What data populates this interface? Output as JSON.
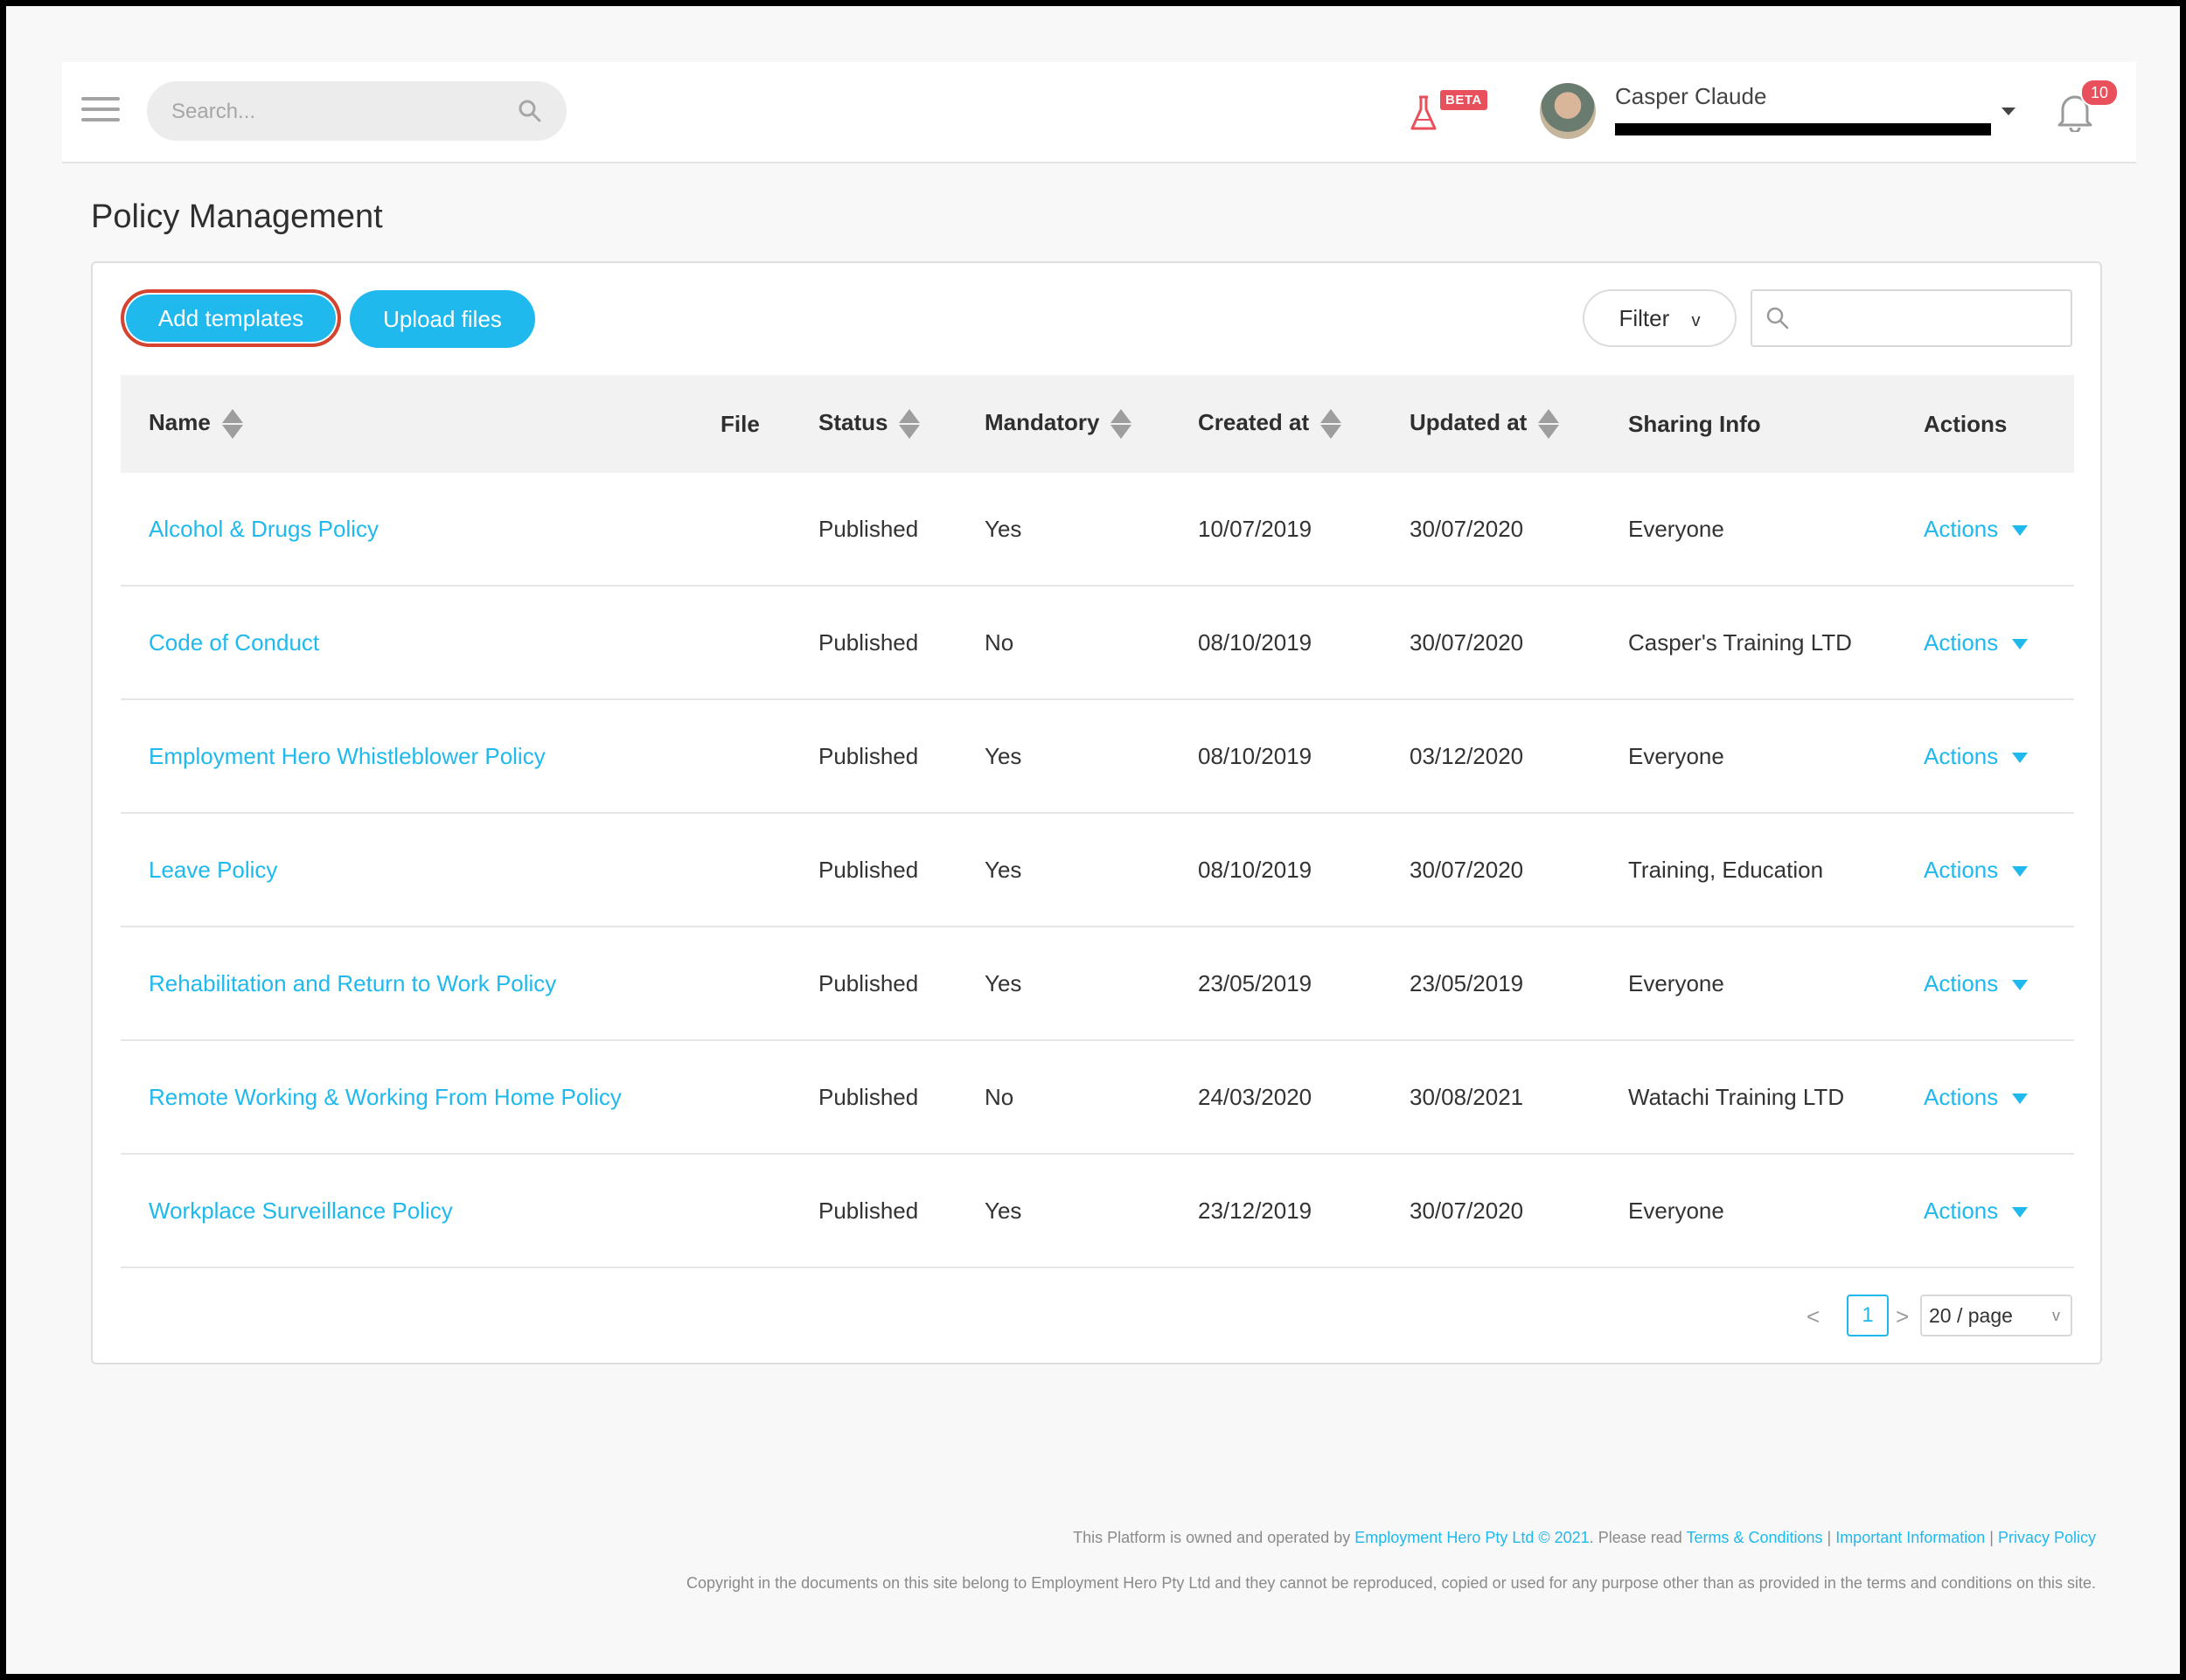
{
  "header": {
    "search_placeholder": "Search...",
    "beta_label": "BETA",
    "user_name": "Casper Claude",
    "notification_count": "10"
  },
  "page": {
    "title": "Policy Management"
  },
  "toolbar": {
    "add_templates_label": "Add templates",
    "upload_files_label": "Upload files",
    "filter_label": "Filter",
    "filter_chevron": "v",
    "search_placeholder": ""
  },
  "table": {
    "columns": [
      "Name",
      "File",
      "Status",
      "Mandatory",
      "Created at",
      "Updated at",
      "Sharing Info",
      "Actions"
    ],
    "rows": [
      {
        "name": "Alcohol & Drugs Policy",
        "file": "",
        "status": "Published",
        "mandatory": "Yes",
        "created": "10/07/2019",
        "updated": "30/07/2020",
        "sharing": "Everyone",
        "actions": "Actions"
      },
      {
        "name": "Code of Conduct",
        "file": "",
        "status": "Published",
        "mandatory": "No",
        "created": "08/10/2019",
        "updated": "30/07/2020",
        "sharing": "Casper's Training LTD",
        "actions": "Actions"
      },
      {
        "name": "Employment Hero Whistleblower Policy",
        "file": "",
        "status": "Published",
        "mandatory": "Yes",
        "created": "08/10/2019",
        "updated": "03/12/2020",
        "sharing": "Everyone",
        "actions": "Actions"
      },
      {
        "name": "Leave Policy",
        "file": "",
        "status": "Published",
        "mandatory": "Yes",
        "created": "08/10/2019",
        "updated": "30/07/2020",
        "sharing": "Training, Education",
        "actions": "Actions"
      },
      {
        "name": "Rehabilitation and Return to Work Policy",
        "file": "",
        "status": "Published",
        "mandatory": "Yes",
        "created": "23/05/2019",
        "updated": "23/05/2019",
        "sharing": "Everyone",
        "actions": "Actions"
      },
      {
        "name": "Remote Working & Working From Home Policy",
        "file": "",
        "status": "Published",
        "mandatory": "No",
        "created": "24/03/2020",
        "updated": "30/08/2021",
        "sharing": "Watachi Training LTD",
        "actions": "Actions"
      },
      {
        "name": "Workplace Surveillance Policy",
        "file": "",
        "status": "Published",
        "mandatory": "Yes",
        "created": "23/12/2019",
        "updated": "30/07/2020",
        "sharing": "Everyone",
        "actions": "Actions"
      }
    ]
  },
  "pagination": {
    "prev": "<",
    "current_page": "1",
    "next": ">",
    "page_size": "20 / page",
    "page_size_chevron": "v"
  },
  "footer": {
    "line1_prefix": "This Platform is owned and operated by ",
    "company_link": "Employment Hero Pty Ltd © 2021",
    "line1_mid": ". Please read ",
    "terms_link": "Terms & Conditions",
    "sep1": " | ",
    "info_link": "Important Information",
    "sep2": " | ",
    "privacy_link": "Privacy Policy",
    "line2": "Copyright in the documents on this site belong to Employment Hero Pty Ltd and they cannot be reproduced, copied or used for any purpose other than as provided in the terms and conditions on this site."
  },
  "colors": {
    "accent": "#1fb9ee",
    "badge": "#e8505b",
    "focus_ring": "#d6432f"
  },
  "icons": [
    "hamburger-menu-icon",
    "search-icon",
    "flask-icon",
    "chevron-down-icon",
    "bell-icon",
    "sort-icon",
    "dropdown-caret-icon"
  ]
}
